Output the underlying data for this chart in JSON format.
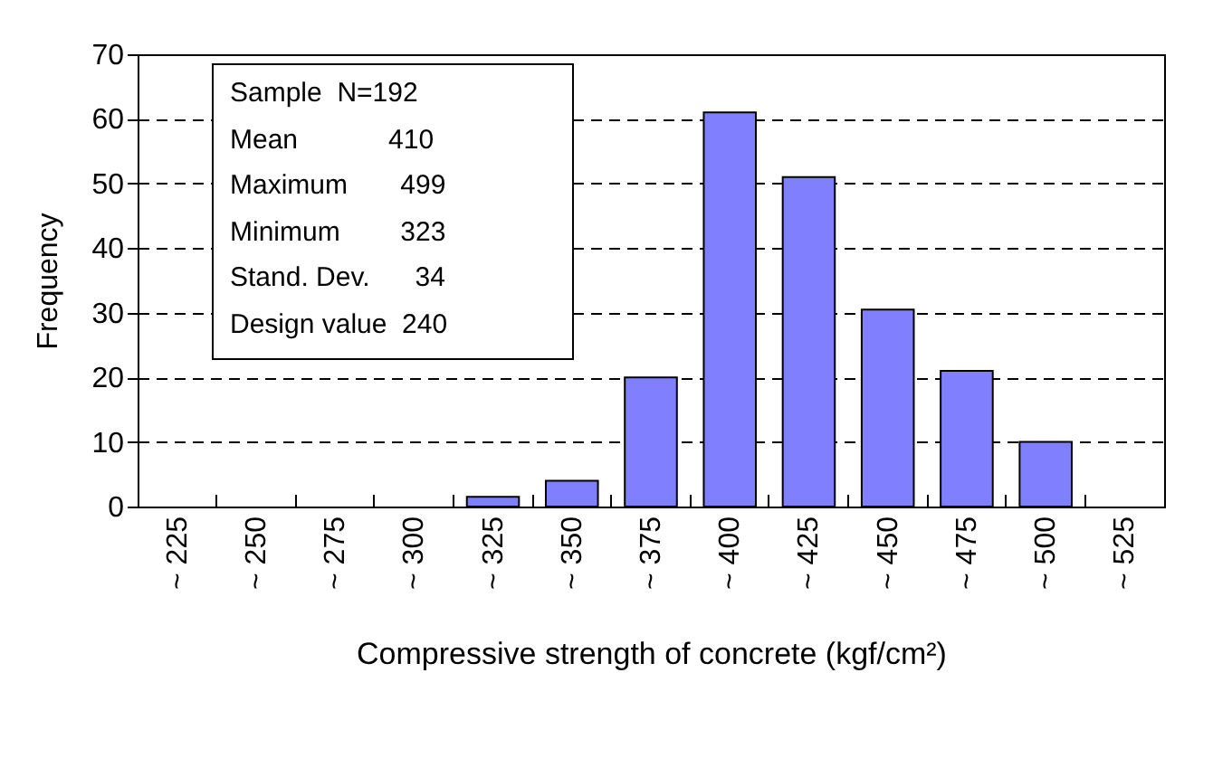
{
  "chart_data": {
    "type": "bar",
    "xlabel": "Compressive strength of concrete (kgf/cm²)",
    "ylabel": "Frequency",
    "categories": [
      "~ 225",
      "~ 250",
      "~ 275",
      "~ 300",
      "~ 325",
      "~ 350",
      "~ 375",
      "~ 400",
      "~ 425",
      "~ 450",
      "~ 475",
      "~ 500",
      "~ 525"
    ],
    "values": [
      0,
      0,
      0,
      0,
      1.5,
      4,
      20,
      61,
      51,
      30.5,
      21,
      10,
      0
    ],
    "color": "#8080ff",
    "ylim": [
      0,
      70
    ],
    "yticks": [
      0,
      10,
      20,
      30,
      40,
      50,
      60,
      70
    ],
    "grid": "y",
    "annotations": [
      "Sample  N=192",
      "Mean            410",
      "Maximum       499",
      "Minimum        323",
      "Stand. Dev.      34",
      "Design value  240"
    ]
  }
}
